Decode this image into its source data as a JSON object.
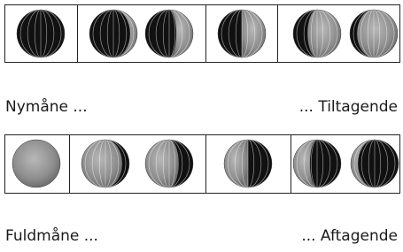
{
  "rows": [
    {
      "start": "Nymåne ...",
      "end": "... Tiltagende"
    },
    {
      "start": "Fuldmåne ...",
      "end": "... Aftagende"
    }
  ]
}
